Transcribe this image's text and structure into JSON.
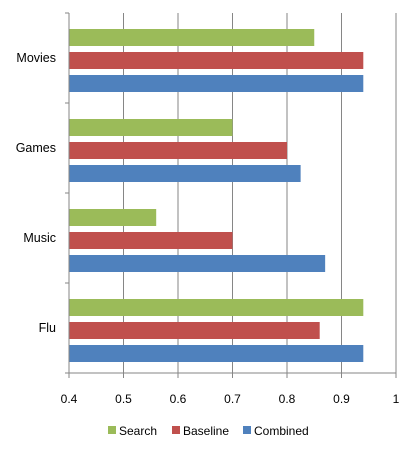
{
  "chart_data": {
    "type": "bar",
    "orientation": "horizontal",
    "categories": [
      "Movies",
      "Games",
      "Music",
      "Flu"
    ],
    "series": [
      {
        "name": "Search",
        "color": "#9BBB59",
        "values": [
          0.85,
          0.7,
          0.56,
          0.94
        ]
      },
      {
        "name": "Baseline",
        "color": "#C0504D",
        "values": [
          0.94,
          0.8,
          0.7,
          0.86
        ]
      },
      {
        "name": "Combined",
        "color": "#4F81BD",
        "values": [
          0.94,
          0.825,
          0.87,
          0.94
        ]
      }
    ],
    "xlim": [
      0.4,
      1.0
    ],
    "x_ticks": [
      "0.4",
      "0.5",
      "0.6",
      "0.7",
      "0.8",
      "0.9",
      "1"
    ],
    "grid": "vertical",
    "grid_color": "#868686",
    "legend_position": "bottom"
  }
}
